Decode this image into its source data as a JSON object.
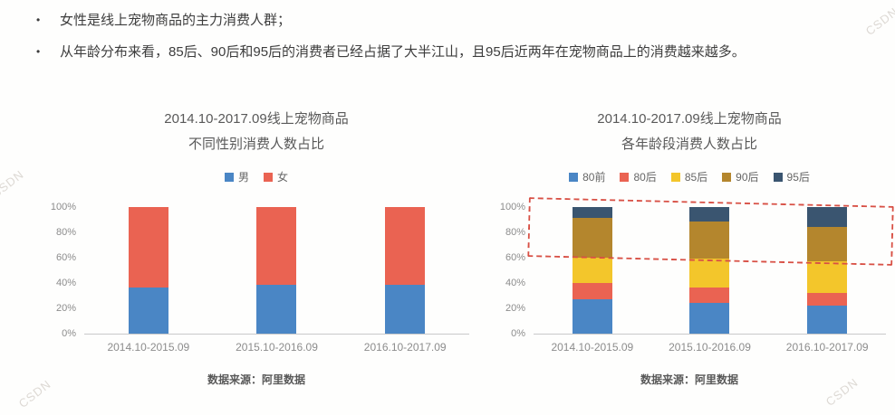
{
  "page": {
    "bullets": [
      "女性是线上宠物商品的主力消费人群；",
      "从年龄分布来看，85后、90后和95后的消费者已经占据了大半江山，且95后近两年在宠物商品上的消费越来越多。"
    ],
    "watermark_text": "CSDN"
  },
  "chart_data": [
    {
      "type": "bar",
      "stacked": true,
      "title": "2014.10-2017.09线上宠物商品",
      "subtitle": "不同性别消费人数占比",
      "categories": [
        "2014.10-2015.09",
        "2015.10-2016.09",
        "2016.10-2017.09"
      ],
      "series": [
        {
          "name": "男",
          "color": "#4a86c5",
          "values": [
            36,
            38,
            38
          ]
        },
        {
          "name": "女",
          "color": "#ea6352",
          "values": [
            64,
            62,
            62
          ]
        }
      ],
      "ylim": [
        0,
        100
      ],
      "yticks": [
        "0%",
        "20%",
        "40%",
        "60%",
        "80%",
        "100%"
      ],
      "grid": false,
      "legend_position": "top",
      "source": "数据来源：阿里数据"
    },
    {
      "type": "bar",
      "stacked": true,
      "title": "2014.10-2017.09线上宠物商品",
      "subtitle": "各年龄段消费人数占比",
      "categories": [
        "2014.10-2015.09",
        "2015.10-2016.09",
        "2016.10-2017.09"
      ],
      "series": [
        {
          "name": "80前",
          "color": "#4a86c5",
          "values": [
            27,
            24,
            22
          ]
        },
        {
          "name": "80后",
          "color": "#ea6352",
          "values": [
            13,
            12,
            10
          ]
        },
        {
          "name": "85后",
          "color": "#f3c62b",
          "values": [
            20,
            23,
            25
          ]
        },
        {
          "name": "90后",
          "color": "#b4862d",
          "values": [
            31,
            29,
            27
          ]
        },
        {
          "name": "95后",
          "color": "#3a5570",
          "values": [
            9,
            12,
            16
          ]
        }
      ],
      "ylim": [
        0,
        100
      ],
      "yticks": [
        "0%",
        "20%",
        "40%",
        "60%",
        "80%",
        "100%"
      ],
      "grid": false,
      "legend_position": "top",
      "annotation_box": {
        "highlights": [
          "85后",
          "90后",
          "95后"
        ],
        "style": "dashed",
        "color": "#d85045",
        "from_percent": 58,
        "to_percent": 104
      },
      "source": "数据来源：阿里数据"
    }
  ]
}
